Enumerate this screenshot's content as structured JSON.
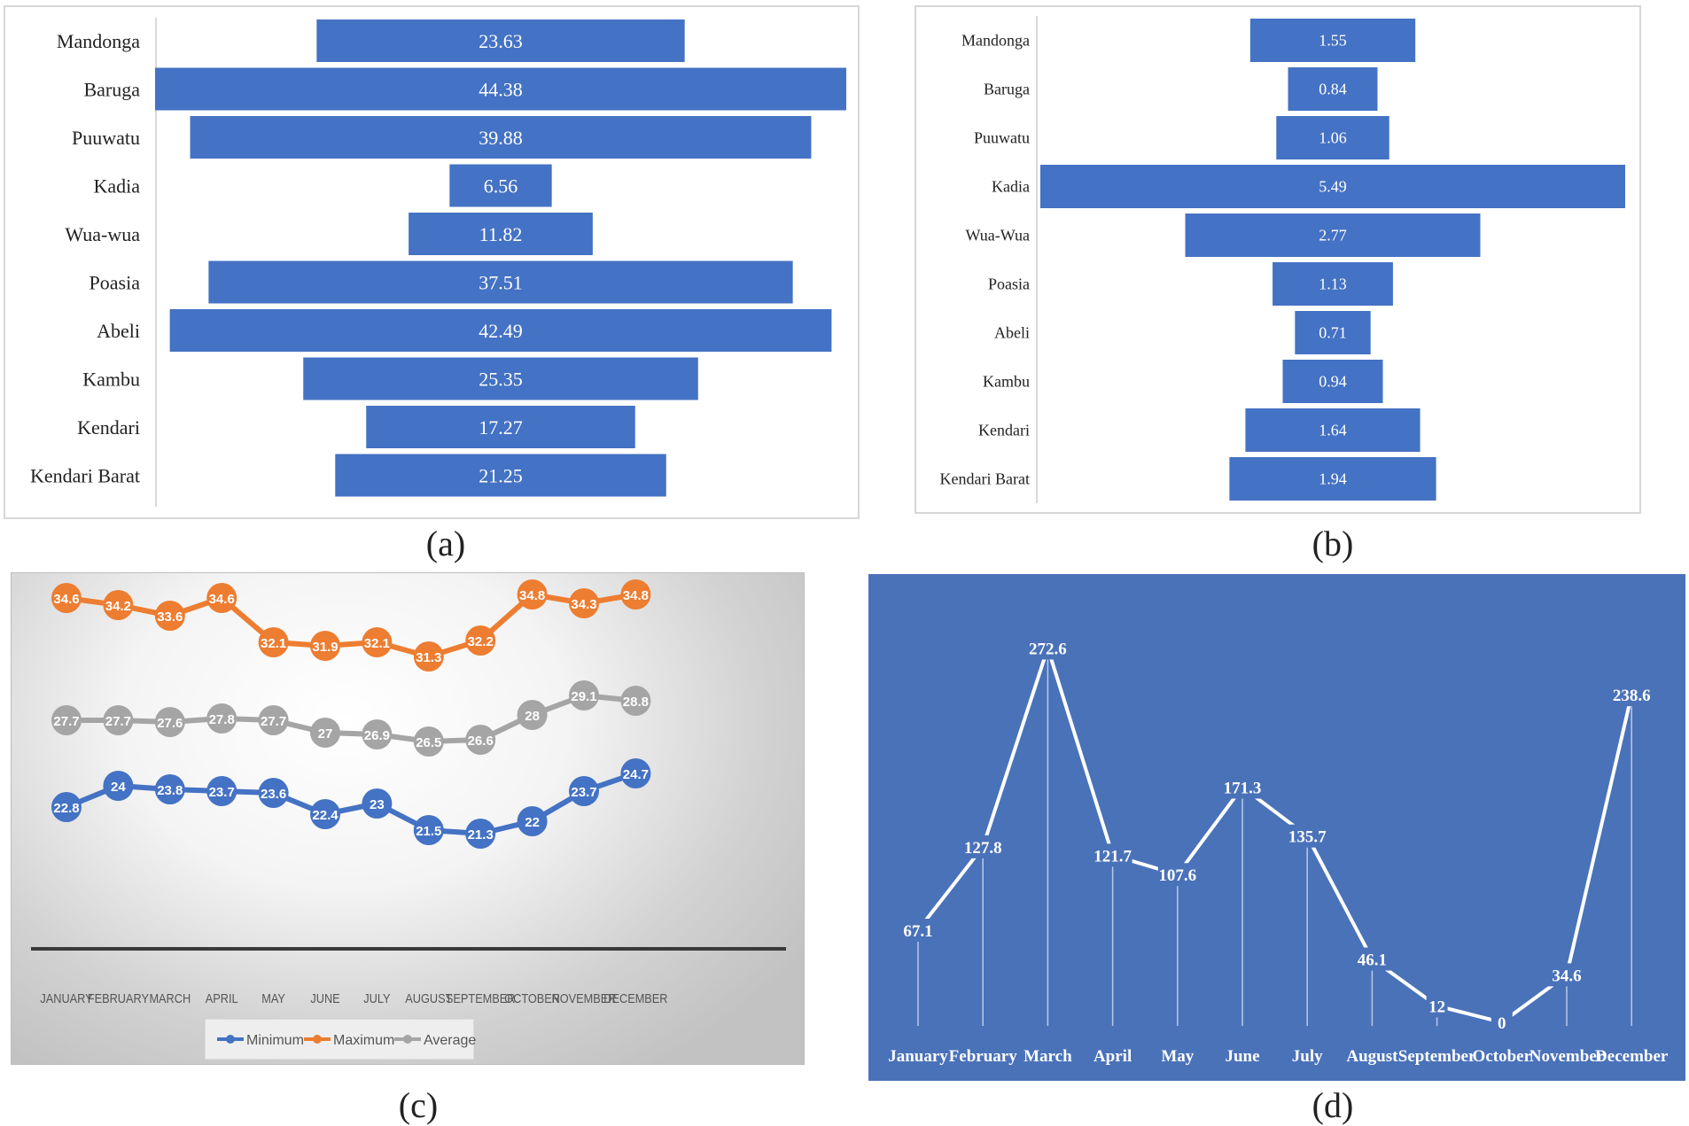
{
  "captions": {
    "a": "(a)",
    "b": "(b)",
    "c": "(c)",
    "d": "(d)"
  },
  "colors": {
    "bar": "#4472c4",
    "orange": "#ed7d31",
    "gray": "#a5a5a5",
    "blue": "#4472c4",
    "panel_d_bg": "#4a72b9"
  },
  "chart_data": [
    {
      "id": "a",
      "type": "bar",
      "orientation": "horizontal-centered",
      "categories": [
        "Mandonga",
        "Baruga",
        "Puuwatu",
        "Kadia",
        "Wua-wua",
        "Poasia",
        "Abeli",
        "Kambu",
        "Kendari",
        "Kendari Barat"
      ],
      "values": [
        23.63,
        44.38,
        39.88,
        6.56,
        11.82,
        37.51,
        42.49,
        25.35,
        17.27,
        21.25
      ],
      "value_labels": [
        "23.63",
        "44.38",
        "39.88",
        "6.56",
        "11.82",
        "37.51",
        "42.49",
        "25.35",
        "17.27",
        "21.25"
      ],
      "ylim": [
        0,
        44.38
      ]
    },
    {
      "id": "b",
      "type": "bar",
      "orientation": "horizontal-centered",
      "categories": [
        "Mandonga",
        "Baruga",
        "Puuwatu",
        "Kadia",
        "Wua-Wua",
        "Poasia",
        "Abeli",
        "Kambu",
        "Kendari",
        "Kendari Barat"
      ],
      "values": [
        1.55,
        0.84,
        1.06,
        5.49,
        2.77,
        1.13,
        0.71,
        0.94,
        1.64,
        1.94
      ],
      "value_labels": [
        "1.55",
        "0.84",
        "1.06",
        "5.49",
        "2.77",
        "1.13",
        "0.71",
        "0.94",
        "1.64",
        "1.94"
      ],
      "ylim": [
        0,
        5.49
      ]
    },
    {
      "id": "c",
      "type": "line",
      "categories": [
        "JANUARY",
        "FEBRUARY",
        "MARCH",
        "APRIL",
        "MAY",
        "JUNE",
        "JULY",
        "AUGUST",
        "SEPTEMBER",
        "OCTOBER",
        "NOVEMBER",
        "DECEMBER"
      ],
      "series": [
        {
          "name": "Maximum",
          "color": "#ed7d31",
          "values": [
            34.6,
            34.2,
            33.6,
            34.6,
            32.1,
            31.9,
            32.1,
            31.3,
            32.2,
            34.8,
            34.3,
            34.8
          ],
          "labels": [
            "34.6",
            "34.2",
            "33.6",
            "34.6",
            "32.1",
            "31.9",
            "32.1",
            "31.3",
            "32.2",
            "34.8",
            "34.3",
            "34.8"
          ]
        },
        {
          "name": "Average",
          "color": "#a5a5a5",
          "values": [
            27.7,
            27.7,
            27.6,
            27.8,
            27.7,
            27,
            26.9,
            26.5,
            26.6,
            28,
            29.1,
            28.8
          ],
          "labels": [
            "27.7",
            "27.7",
            "27.6",
            "27.8",
            "27.7",
            "27",
            "26.9",
            "26.5",
            "26.6",
            "28",
            "29.1",
            "28.8"
          ]
        },
        {
          "name": "Minimum",
          "color": "#4472c4",
          "values": [
            22.8,
            24,
            23.8,
            23.7,
            23.6,
            22.4,
            23,
            21.5,
            21.3,
            22,
            23.7,
            24.7
          ],
          "labels": [
            "22.8",
            "24",
            "23.8",
            "23.7",
            "23.6",
            "22.4",
            "23",
            "21.5",
            "21.3",
            "22",
            "23.7",
            "24.7"
          ]
        }
      ],
      "legend": [
        "Minimum",
        "Maximum",
        "Average"
      ],
      "legend_position": "bottom",
      "ylim": [
        15,
        37
      ]
    },
    {
      "id": "d",
      "type": "line",
      "categories": [
        "January",
        "February",
        "March",
        "April",
        "May",
        "June",
        "July",
        "August",
        "September",
        "October",
        "November",
        "December"
      ],
      "values": [
        67.1,
        127.8,
        272.6,
        121.7,
        107.6,
        171.3,
        135.7,
        46.1,
        12,
        0,
        34.6,
        238.6
      ],
      "value_labels": [
        "67.1",
        "127.8",
        "272.6",
        "121.7",
        "107.6",
        "171.3",
        "135.7",
        "46.1",
        "12",
        "0",
        "34.6",
        "238.6"
      ],
      "ylim": [
        0,
        272.6
      ]
    }
  ]
}
